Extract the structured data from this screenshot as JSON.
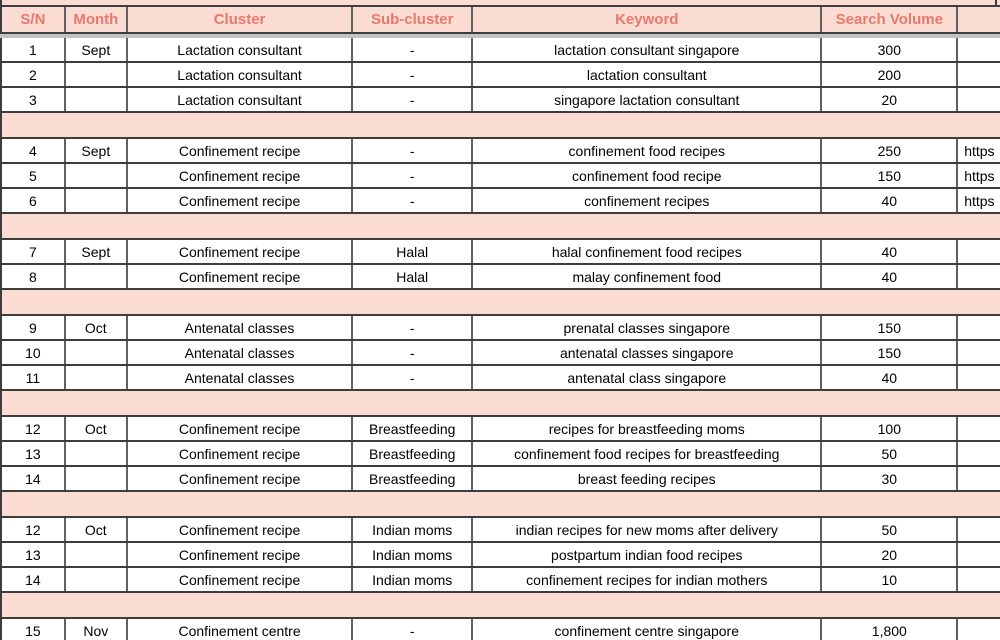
{
  "header": {
    "columns": [
      "S/N",
      "Month",
      "Cluster",
      "Sub-cluster",
      "Keyword",
      "Search Volume",
      ""
    ]
  },
  "rows": [
    {
      "type": "data",
      "cells": [
        "1",
        "Sept",
        "Lactation consultant",
        "-",
        "lactation consultant singapore",
        "300",
        ""
      ]
    },
    {
      "type": "data",
      "cells": [
        "2",
        "",
        "Lactation consultant",
        "-",
        "lactation consultant",
        "200",
        ""
      ]
    },
    {
      "type": "data",
      "cells": [
        "3",
        "",
        "Lactation consultant",
        "-",
        "singapore lactation consultant",
        "20",
        ""
      ]
    },
    {
      "type": "spacer"
    },
    {
      "type": "data",
      "cells": [
        "4",
        "Sept",
        "Confinement recipe",
        "-",
        "confinement food recipes",
        "250",
        "https"
      ]
    },
    {
      "type": "data",
      "cells": [
        "5",
        "",
        "Confinement recipe",
        "-",
        "confinement food recipe",
        "150",
        "https"
      ]
    },
    {
      "type": "data",
      "cells": [
        "6",
        "",
        "Confinement recipe",
        "-",
        "confinement recipes",
        "40",
        "https"
      ]
    },
    {
      "type": "spacer"
    },
    {
      "type": "data",
      "cells": [
        "7",
        "Sept",
        "Confinement recipe",
        "Halal",
        "halal confinement food recipes",
        "40",
        ""
      ]
    },
    {
      "type": "data",
      "cells": [
        "8",
        "",
        "Confinement recipe",
        "Halal",
        "malay confinement food",
        "40",
        ""
      ]
    },
    {
      "type": "spacer"
    },
    {
      "type": "data",
      "cells": [
        "9",
        "Oct",
        "Antenatal classes",
        "-",
        "prenatal classes singapore",
        "150",
        ""
      ]
    },
    {
      "type": "data",
      "cells": [
        "10",
        "",
        "Antenatal classes",
        "-",
        "antenatal classes singapore",
        "150",
        ""
      ]
    },
    {
      "type": "data",
      "cells": [
        "11",
        "",
        "Antenatal classes",
        "-",
        "antenatal class singapore",
        "40",
        ""
      ]
    },
    {
      "type": "spacer"
    },
    {
      "type": "data",
      "cells": [
        "12",
        "Oct",
        "Confinement recipe",
        "Breastfeeding",
        "recipes for breastfeeding moms",
        "100",
        ""
      ]
    },
    {
      "type": "data",
      "cells": [
        "13",
        "",
        "Confinement recipe",
        "Breastfeeding",
        "confinement food recipes for breastfeeding",
        "50",
        ""
      ]
    },
    {
      "type": "data",
      "cells": [
        "14",
        "",
        "Confinement recipe",
        "Breastfeeding",
        "breast feeding recipes",
        "30",
        ""
      ]
    },
    {
      "type": "spacer"
    },
    {
      "type": "data",
      "cells": [
        "12",
        "Oct",
        "Confinement recipe",
        "Indian moms",
        "indian recipes for new moms after delivery",
        "50",
        ""
      ]
    },
    {
      "type": "data",
      "cells": [
        "13",
        "",
        "Confinement recipe",
        "Indian moms",
        "postpartum indian food recipes",
        "20",
        ""
      ]
    },
    {
      "type": "data",
      "cells": [
        "14",
        "",
        "Confinement recipe",
        "Indian moms",
        "confinement recipes for indian mothers",
        "10",
        ""
      ]
    },
    {
      "type": "spacer"
    },
    {
      "type": "data",
      "cells": [
        "15",
        "Nov",
        "Confinement centre",
        "-",
        "confinement centre singapore",
        "1,800",
        ""
      ]
    }
  ],
  "colors": {
    "accent": "#e8796d",
    "band_bg": "#fadcd3",
    "grid_line": "#3d3d3d",
    "v_line": "#606060",
    "divider": "#c3c3c3",
    "text": "#000000"
  }
}
